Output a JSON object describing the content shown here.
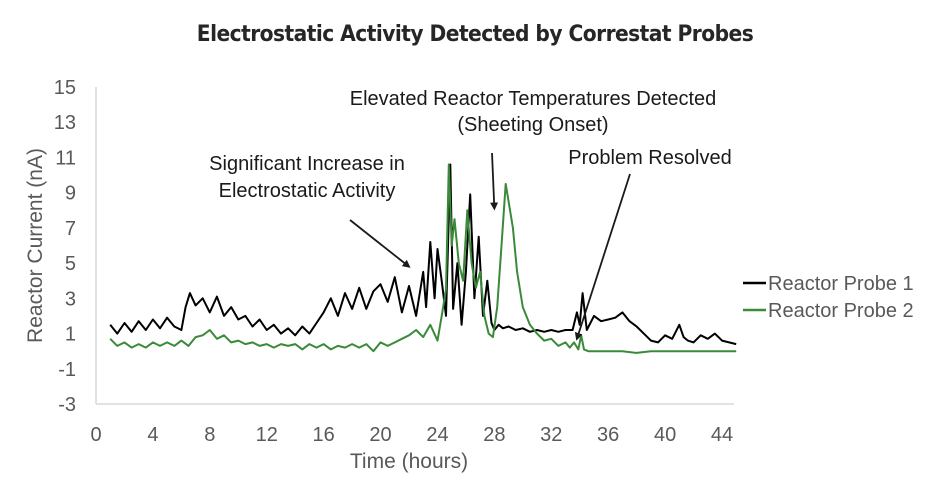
{
  "chart_data": {
    "type": "line",
    "title": "Electrostatic Activity Detected by Correstat Probes",
    "xlabel": "Time (hours)",
    "ylabel": "Reactor Current (nA)",
    "xlim": [
      0,
      45
    ],
    "ylim": [
      -3,
      15
    ],
    "xticks": [
      "0",
      "4",
      "8",
      "12",
      "16",
      "20",
      "24",
      "28",
      "32",
      "36",
      "40",
      "44"
    ],
    "yticks": [
      "15",
      "13",
      "11",
      "9",
      "7",
      "5",
      "3",
      "1",
      "-1",
      "-3"
    ],
    "grid": false,
    "legend_position": "right",
    "series": [
      {
        "name": "Reactor Probe 1",
        "color": "#000000",
        "x": [
          1,
          1.5,
          2,
          2.5,
          3,
          3.5,
          4,
          4.5,
          5,
          5.5,
          6,
          6.3,
          6.6,
          7,
          7.5,
          8,
          8.5,
          9,
          9.5,
          10,
          10.5,
          11,
          11.5,
          12,
          12.5,
          13,
          13.5,
          14,
          14.5,
          15,
          15.5,
          16,
          16.5,
          17,
          17.5,
          18,
          18.5,
          19,
          19.5,
          20,
          20.5,
          21,
          21.5,
          22,
          22.5,
          23,
          23.2,
          23.5,
          23.8,
          24,
          24.3,
          24.6,
          24.9,
          25.1,
          25.4,
          25.7,
          26,
          26.3,
          26.6,
          26.9,
          27.2,
          27.5,
          27.8,
          28,
          28.3,
          28.6,
          29,
          29.5,
          30,
          30.5,
          31,
          31.5,
          32,
          32.5,
          33,
          33.5,
          33.8,
          34,
          34.2,
          34.5,
          35,
          35.5,
          36,
          36.5,
          37,
          37.5,
          38,
          38.5,
          39,
          39.5,
          40,
          40.5,
          41,
          41.3,
          41.6,
          42,
          42.5,
          43,
          43.5,
          44,
          44.5,
          45
        ],
        "y": [
          1.5,
          1.0,
          1.6,
          1.1,
          1.7,
          1.2,
          1.8,
          1.3,
          1.9,
          1.4,
          1.2,
          2.5,
          3.3,
          2.6,
          3.0,
          2.2,
          3.1,
          2.0,
          2.5,
          1.8,
          2.0,
          1.4,
          1.8,
          1.2,
          1.5,
          1.0,
          1.3,
          0.9,
          1.4,
          1.0,
          1.6,
          2.2,
          3.0,
          2.0,
          3.3,
          2.4,
          3.6,
          2.4,
          3.4,
          3.8,
          2.8,
          4.2,
          2.2,
          3.7,
          2.0,
          4.5,
          2.5,
          6.2,
          3.0,
          5.8,
          4.0,
          2.0,
          10.6,
          2.4,
          5.0,
          1.5,
          4.5,
          8.9,
          3.0,
          6.5,
          2.0,
          4.0,
          1.6,
          1.2,
          1.5,
          1.3,
          1.4,
          1.2,
          1.3,
          1.1,
          1.2,
          1.1,
          1.2,
          1.1,
          1.2,
          1.2,
          2.2,
          1.5,
          3.3,
          1.2,
          2.0,
          1.7,
          1.8,
          1.9,
          2.2,
          1.7,
          1.4,
          1.0,
          0.6,
          0.5,
          0.9,
          0.7,
          1.5,
          0.8,
          0.6,
          0.5,
          0.9,
          0.7,
          1.0,
          0.6,
          0.5,
          0.4
        ]
      },
      {
        "name": "Reactor Probe 2",
        "color": "#3a8a3a",
        "x": [
          1,
          1.5,
          2,
          2.5,
          3,
          3.5,
          4,
          4.5,
          5,
          5.5,
          6,
          6.5,
          7,
          7.5,
          8,
          8.5,
          9,
          9.5,
          10,
          10.5,
          11,
          11.5,
          12,
          12.5,
          13,
          13.5,
          14,
          14.5,
          15,
          15.5,
          16,
          16.5,
          17,
          17.5,
          18,
          18.5,
          19,
          19.5,
          20,
          20.5,
          21,
          21.5,
          22,
          22.5,
          23,
          23.5,
          24,
          24.3,
          24.6,
          24.8,
          25.0,
          25.2,
          25.5,
          25.8,
          26.1,
          26.4,
          26.7,
          27.0,
          27.3,
          27.6,
          27.9,
          28.2,
          28.5,
          28.8,
          29.0,
          29.3,
          29.6,
          30,
          30.5,
          31,
          31.5,
          32,
          32.5,
          33,
          33.3,
          33.6,
          33.9,
          34.1,
          34.3,
          34.6,
          35,
          36,
          37,
          38,
          39,
          40,
          41,
          42,
          43,
          44,
          45
        ],
        "y": [
          0.7,
          0.3,
          0.5,
          0.2,
          0.4,
          0.2,
          0.5,
          0.3,
          0.5,
          0.3,
          0.6,
          0.3,
          0.8,
          0.9,
          1.2,
          0.7,
          0.9,
          0.5,
          0.6,
          0.4,
          0.5,
          0.3,
          0.4,
          0.2,
          0.4,
          0.3,
          0.4,
          0.1,
          0.4,
          0.2,
          0.4,
          0.1,
          0.3,
          0.2,
          0.4,
          0.2,
          0.4,
          0.0,
          0.5,
          0.3,
          0.5,
          0.7,
          0.9,
          1.2,
          0.8,
          1.5,
          0.6,
          2.0,
          3.5,
          10.6,
          6.0,
          7.5,
          5.0,
          4.0,
          8.0,
          5.0,
          3.6,
          4.5,
          2.0,
          1.0,
          0.8,
          2.5,
          6.0,
          9.5,
          8.5,
          7.0,
          4.5,
          2.5,
          1.5,
          1.0,
          0.6,
          0.7,
          0.3,
          0.5,
          0.2,
          0.5,
          0.1,
          0.9,
          0.1,
          0.0,
          0.0,
          0.0,
          0.0,
          -0.1,
          0.0,
          0.0,
          0.0,
          0.0,
          0.0,
          0.0,
          0.0
        ]
      }
    ],
    "annotations": [
      {
        "lines": [
          "Elevated Reactor Temperatures Detected",
          "(Sheeting Onset)"
        ],
        "arrow_to": [
          28,
          8.1
        ]
      },
      {
        "lines": [
          "Significant Increase in",
          "Electrostatic Activity"
        ],
        "arrow_to": [
          22,
          4.8
        ]
      },
      {
        "lines": [
          "Problem Resolved"
        ],
        "arrow_to": [
          33.8,
          0.7
        ]
      }
    ]
  }
}
